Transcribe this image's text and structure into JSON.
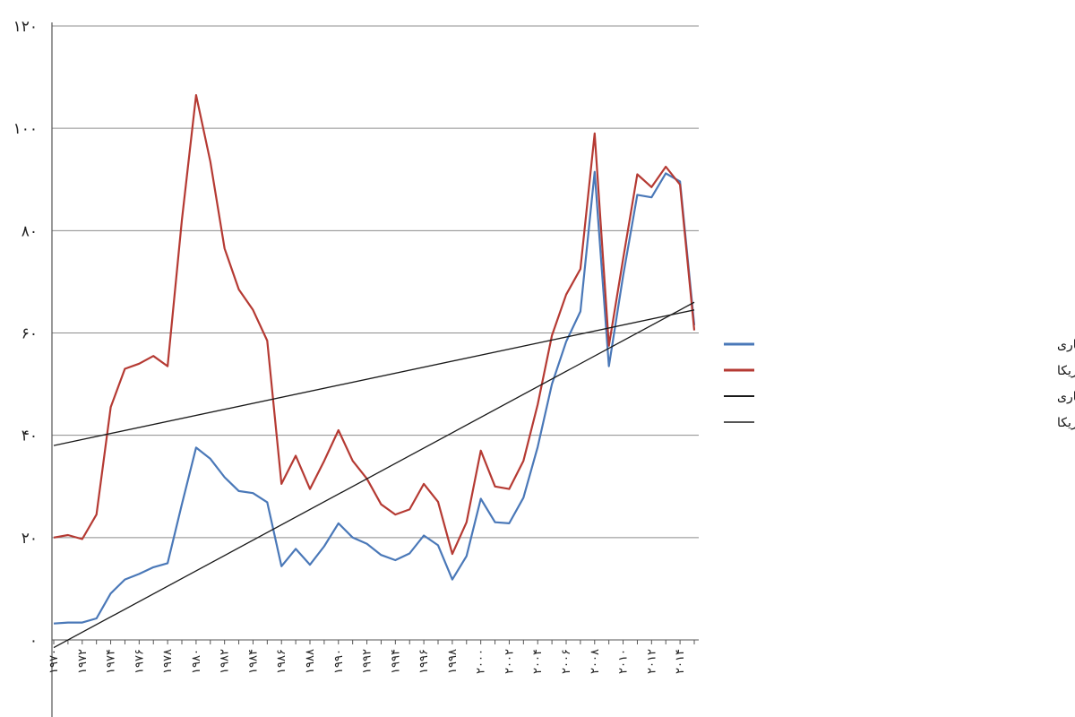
{
  "chart_data": {
    "type": "line",
    "title": "",
    "xlabel": "",
    "ylabel": "",
    "ylim": [
      0,
      120
    ],
    "yticks": [
      {
        "value": 0,
        "label": "۰"
      },
      {
        "value": 20,
        "label": "۲۰"
      },
      {
        "value": 40,
        "label": "۴۰"
      },
      {
        "value": 60,
        "label": "۶۰"
      },
      {
        "value": 80,
        "label": "۸۰"
      },
      {
        "value": 100,
        "label": "۱۰۰"
      },
      {
        "value": 120,
        "label": "۱۲۰"
      }
    ],
    "x": [
      1970,
      1971,
      1972,
      1973,
      1974,
      1975,
      1976,
      1977,
      1978,
      1979,
      1980,
      1981,
      1982,
      1983,
      1984,
      1985,
      1986,
      1987,
      1988,
      1989,
      1990,
      1991,
      1992,
      1993,
      1994,
      1995,
      1996,
      1997,
      1998,
      1999,
      2000,
      2001,
      2002,
      2003,
      2004,
      2005,
      2006,
      2007,
      2008,
      2009,
      2010,
      2011,
      2012,
      2013,
      2014,
      2015
    ],
    "xticks": [
      {
        "value": 1970,
        "label": "۱۹۷۰"
      },
      {
        "value": 1972,
        "label": "۱۹۷۲"
      },
      {
        "value": 1974,
        "label": "۱۹۷۴"
      },
      {
        "value": 1976,
        "label": "۱۹۷۶"
      },
      {
        "value": 1978,
        "label": "۱۹۷۸"
      },
      {
        "value": 1980,
        "label": "۱۹۸۰"
      },
      {
        "value": 1982,
        "label": "۱۹۸۲"
      },
      {
        "value": 1984,
        "label": "۱۹۸۴"
      },
      {
        "value": 1986,
        "label": "۱۹۸۶"
      },
      {
        "value": 1988,
        "label": "۱۹۸۸"
      },
      {
        "value": 1990,
        "label": "۱۹۹۰"
      },
      {
        "value": 1992,
        "label": "۱۹۹۲"
      },
      {
        "value": 1994,
        "label": "۱۹۹۴"
      },
      {
        "value": 1996,
        "label": "۱۹۹۶"
      },
      {
        "value": 1998,
        "label": "۱۹۹۸"
      },
      {
        "value": 2000,
        "label": "۲۰۰۰"
      },
      {
        "value": 2002,
        "label": "۲۰۰۲"
      },
      {
        "value": 2004,
        "label": "۲۰۰۴"
      },
      {
        "value": 2006,
        "label": "۲۰۰۶"
      },
      {
        "value": 2008,
        "label": "۲۰۰۸"
      },
      {
        "value": 2010,
        "label": "۲۰۱۰"
      },
      {
        "value": 2012,
        "label": "۲۰۱۲"
      },
      {
        "value": 2014,
        "label": "۲۰۱۴"
      }
    ],
    "grid": true,
    "legend_position": "right",
    "series": [
      {
        "name": "قیمت نفت خام آمریکا به قیمت جاری",
        "kind": "line",
        "color": "#4a78b8",
        "values": [
          3.2,
          3.4,
          3.4,
          4.2,
          9.1,
          11.8,
          12.9,
          14.2,
          15.0,
          26.5,
          37.6,
          35.4,
          31.8,
          29.1,
          28.7,
          26.9,
          14.4,
          17.8,
          14.7,
          18.3,
          22.8,
          20.0,
          18.8,
          16.6,
          15.6,
          16.9,
          20.4,
          18.5,
          11.8,
          16.4,
          27.6,
          23.0,
          22.8,
          27.8,
          37.7,
          50.0,
          58.3,
          64.2,
          91.5,
          53.5,
          71.2,
          87.0,
          86.5,
          91.2,
          89.6,
          61.5
        ]
      },
      {
        "name": "قیمت نفت خام به قیمت ثابت شاخص قیمت در آمریکا",
        "kind": "line",
        "color": "#b53a33",
        "values": [
          20.0,
          20.5,
          19.7,
          24.5,
          45.5,
          53.0,
          54.0,
          55.5,
          53.5,
          82.0,
          106.5,
          93.5,
          76.5,
          68.5,
          64.5,
          58.5,
          30.5,
          36.0,
          29.5,
          35.0,
          41.0,
          35.0,
          31.5,
          26.5,
          24.5,
          25.5,
          30.5,
          27.0,
          16.8,
          23.0,
          37.0,
          30.0,
          29.5,
          35.0,
          46.0,
          59.5,
          67.5,
          72.5,
          99.0,
          57.5,
          74.5,
          91.0,
          88.5,
          92.5,
          89.0,
          60.5
        ]
      },
      {
        "name": "قیمت نفت خام آمریکا به قیمت جاری",
        "kind": "trend",
        "color": "#1a1a1a",
        "start": [
          1970,
          38.0
        ],
        "end": [
          2015,
          64.5
        ]
      },
      {
        "name": "قیمت نفت خام به قیمت ثابت شاخص قیمت در آمریکا",
        "kind": "trend",
        "color": "#1a1a1a",
        "start": [
          1970,
          -1.5
        ],
        "end": [
          2015,
          66.0
        ]
      }
    ]
  },
  "legend": {
    "items": [
      {
        "label": "قیمت نفت خام آمریکا به قیمت جاری",
        "color": "#4a78b8"
      },
      {
        "label": "قیمت نفت خام به قیمت ثابت شاخص قیمت در آمریکا",
        "color": "#b53a33"
      },
      {
        "label": "قیمت نفت خام آمریکا به قیمت جاری",
        "color": "#1a1a1a"
      },
      {
        "label": "قیمت نفت خام به قیمت ثابت شاخص قیمت در آمریکا",
        "color": "#555555"
      }
    ]
  }
}
